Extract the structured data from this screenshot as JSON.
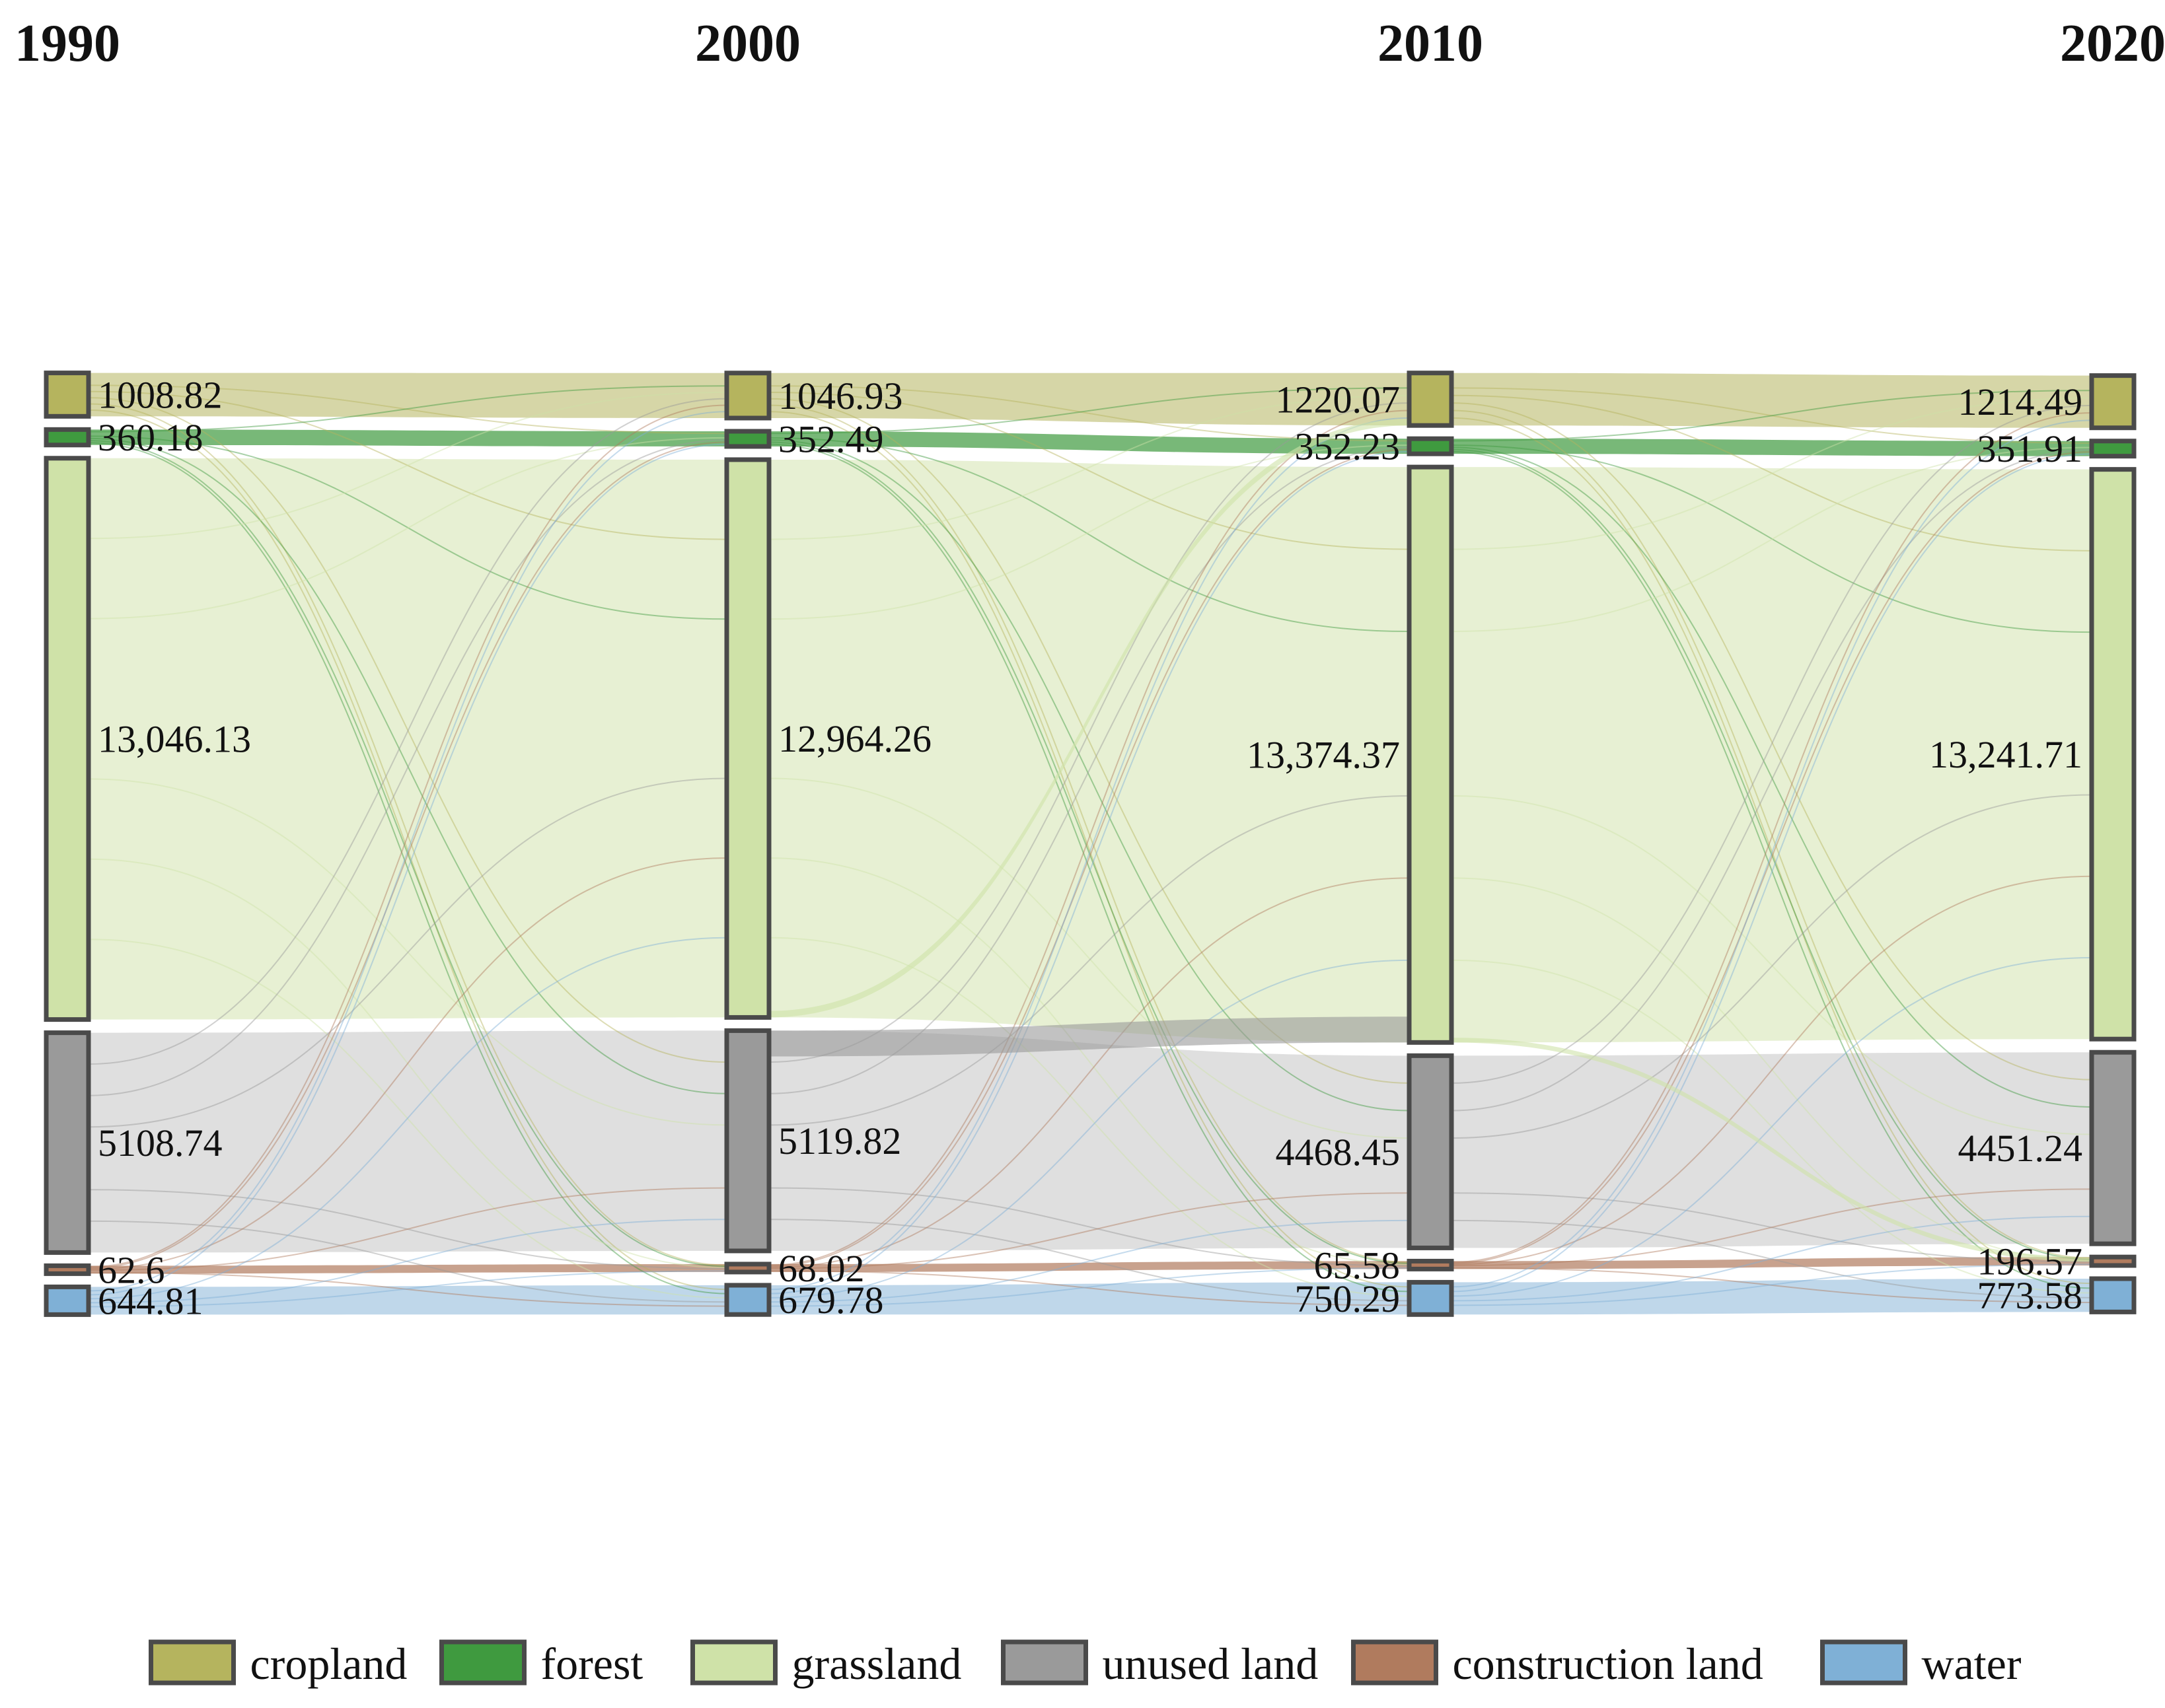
{
  "chart_data": {
    "type": "sankey",
    "title": "",
    "years": [
      "1990",
      "2000",
      "2010",
      "2020"
    ],
    "categories": [
      "cropland",
      "forest",
      "grassland",
      "unused land",
      "construction land",
      "water"
    ],
    "colors": {
      "cropland": "#b5b45e",
      "forest": "#3f9a3f",
      "grassland": "#cfe2a8",
      "unused land": "#9a9a9a",
      "construction land": "#b07b5e",
      "water": "#7fb0d6"
    },
    "nodes": [
      {
        "year": "1990",
        "values": {
          "cropland": 1008.82,
          "forest": 360.18,
          "grassland": 13046.13,
          "unused land": 5108.74,
          "construction land": 62.6,
          "water": 644.81
        }
      },
      {
        "year": "2000",
        "values": {
          "cropland": 1046.93,
          "forest": 352.49,
          "grassland": 12964.26,
          "unused land": 5119.82,
          "construction land": 68.02,
          "water": 679.78
        }
      },
      {
        "year": "2010",
        "values": {
          "cropland": 1220.07,
          "forest": 352.23,
          "grassland": 13374.37,
          "unused land": 4468.45,
          "construction land": 65.58,
          "water": 750.29
        }
      },
      {
        "year": "2020",
        "values": {
          "cropland": 1214.49,
          "forest": 351.91,
          "grassland": 13241.71,
          "unused land": 4451.24,
          "construction land": 196.57,
          "water": 773.58
        }
      }
    ],
    "labels": [
      {
        "cropland": "1008.82",
        "forest": "360.18",
        "grassland": "13,046.13",
        "unused land": "5108.74",
        "construction land": "62.6",
        "water": "644.81"
      },
      {
        "cropland": "1046.93",
        "forest": "352.49",
        "grassland": "12,964.26",
        "unused land": "5119.82",
        "construction land": "68.02",
        "water": "679.78"
      },
      {
        "cropland": "1220.07",
        "forest": "352.23",
        "grassland": "13,374.37",
        "unused land": "4468.45",
        "construction land": "65.58",
        "water": "750.29"
      },
      {
        "cropland": "1214.49",
        "forest": "351.91",
        "grassland": "13,241.71",
        "unused land": "4451.24",
        "construction land": "196.57",
        "water": "773.58"
      }
    ],
    "major_transitions": [
      {
        "from_year": "2000",
        "to_year": "2010",
        "from": "grassland",
        "to": "cropland",
        "value": 150
      },
      {
        "from_year": "2000",
        "to_year": "2010",
        "from": "unused land",
        "to": "grassland",
        "value": 600
      },
      {
        "from_year": "2010",
        "to_year": "2020",
        "from": "grassland",
        "to": "construction land",
        "value": 110
      }
    ]
  }
}
